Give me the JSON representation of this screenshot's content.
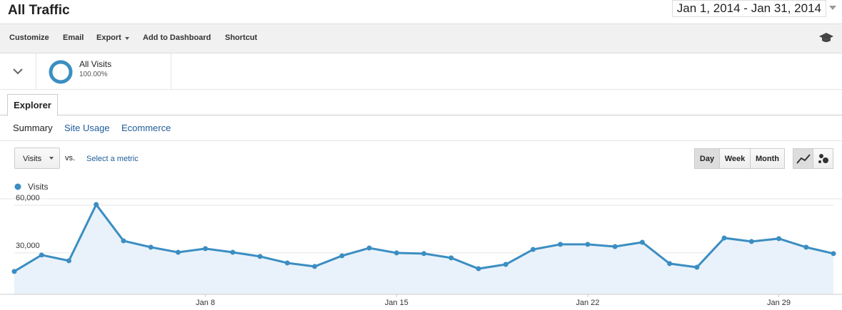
{
  "header": {
    "title": "All Traffic",
    "date_range": "Jan 1, 2014 - Jan 31, 2014"
  },
  "toolbar": [
    "Customize",
    "Email",
    "Export",
    "Add to Dashboard",
    "Shortcut"
  ],
  "segment": {
    "name": "All Visits",
    "share": "100.00%"
  },
  "tab": "Explorer",
  "subtabs": [
    "Summary",
    "Site Usage",
    "Ecommerce"
  ],
  "controls": {
    "metric": "Visits",
    "vs": "vs.",
    "select_metric": "Select a metric",
    "periods": [
      "Day",
      "Week",
      "Month"
    ]
  },
  "chart_data": {
    "type": "line",
    "categories": [
      null,
      null,
      null,
      null,
      null,
      null,
      null,
      "Jan 8",
      null,
      null,
      null,
      null,
      null,
      null,
      "Jan 15",
      null,
      null,
      null,
      null,
      null,
      null,
      "Jan 22",
      null,
      null,
      null,
      null,
      null,
      null,
      "Jan 29",
      null,
      null
    ],
    "series": [
      {
        "name": "Visits",
        "color": "#3b8ec2",
        "values": [
          18400,
          28700,
          25100,
          60400,
          37600,
          33600,
          30400,
          32700,
          30400,
          27800,
          23700,
          21500,
          28200,
          33100,
          30000,
          29600,
          26900,
          20100,
          22800,
          32200,
          35400,
          35400,
          34000,
          36700,
          23300,
          21000,
          39400,
          37200,
          39000,
          33600,
          29600
        ]
      }
    ],
    "ylim": [
      4000,
      64000
    ],
    "yticks": [
      {
        "value": 30000,
        "label": "30,000"
      },
      {
        "value": 60000,
        "label": "60,000"
      }
    ],
    "grid": true
  }
}
